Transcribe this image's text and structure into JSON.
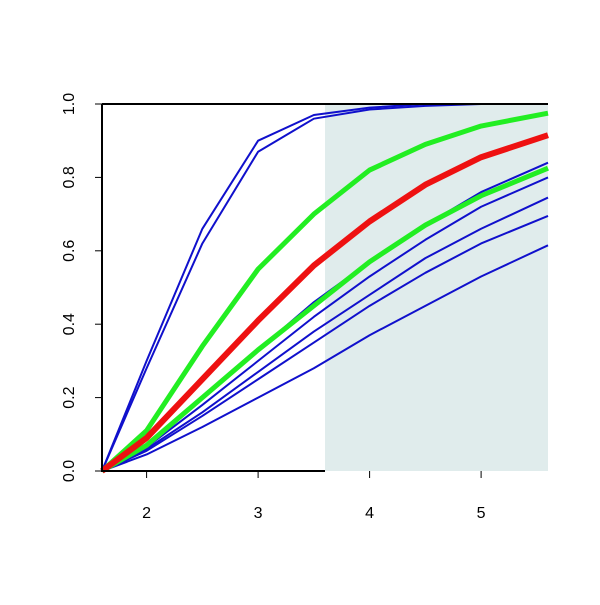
{
  "chart_data": {
    "type": "line",
    "x": [
      1.6,
      2,
      2.5,
      3,
      3.5,
      4,
      4.5,
      5,
      5.6
    ],
    "xlim": [
      1.6,
      5.6
    ],
    "ylim": [
      0,
      1
    ],
    "xticks": [
      2,
      3,
      4,
      5
    ],
    "yticks": [
      {
        "value": 0,
        "label": "0.0"
      },
      {
        "value": 0.2,
        "label": "0.2"
      },
      {
        "value": 0.4,
        "label": "0.4"
      },
      {
        "value": 0.6,
        "label": "0.6"
      },
      {
        "value": 0.8,
        "label": "0.8"
      },
      {
        "value": 1,
        "label": "1.0"
      }
    ],
    "shaded_xrange": [
      3.6,
      5.6
    ],
    "shade_color": "#e0ecec",
    "series": [
      {
        "color": "#1010cc",
        "width": 2,
        "values": [
          0,
          0.3,
          0.66,
          0.9,
          0.97,
          0.99,
          1.0,
          1.0,
          1.0
        ]
      },
      {
        "color": "#1010cc",
        "width": 2,
        "values": [
          0,
          0.28,
          0.62,
          0.87,
          0.96,
          0.985,
          0.995,
          1.0,
          1.0
        ]
      },
      {
        "color": "#1010cc",
        "width": 2,
        "values": [
          0,
          0.07,
          0.2,
          0.33,
          0.46,
          0.57,
          0.67,
          0.76,
          0.84
        ]
      },
      {
        "color": "#1010cc",
        "width": 2,
        "values": [
          0,
          0.065,
          0.18,
          0.3,
          0.42,
          0.53,
          0.63,
          0.72,
          0.8
        ]
      },
      {
        "color": "#1010cc",
        "width": 2,
        "values": [
          0,
          0.06,
          0.16,
          0.27,
          0.38,
          0.48,
          0.58,
          0.66,
          0.745
        ]
      },
      {
        "color": "#1010cc",
        "width": 2,
        "values": [
          0,
          0.055,
          0.15,
          0.25,
          0.35,
          0.45,
          0.54,
          0.62,
          0.695
        ]
      },
      {
        "color": "#1010cc",
        "width": 2,
        "values": [
          0,
          0.045,
          0.12,
          0.2,
          0.28,
          0.37,
          0.45,
          0.53,
          0.615
        ]
      },
      {
        "color": "#22ee22",
        "width": 5,
        "values": [
          0,
          0.11,
          0.34,
          0.55,
          0.7,
          0.82,
          0.89,
          0.94,
          0.975
        ]
      },
      {
        "color": "#22ee22",
        "width": 5,
        "values": [
          0,
          0.07,
          0.2,
          0.33,
          0.45,
          0.57,
          0.67,
          0.75,
          0.825
        ]
      },
      {
        "color": "#ee1111",
        "width": 6,
        "values": [
          0,
          0.09,
          0.25,
          0.41,
          0.56,
          0.68,
          0.78,
          0.855,
          0.915
        ]
      }
    ]
  }
}
